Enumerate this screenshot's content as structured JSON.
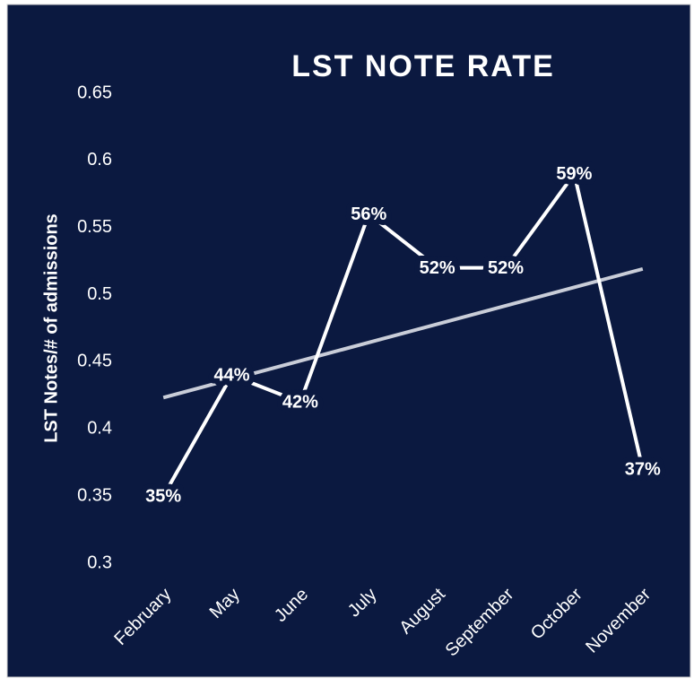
{
  "chart_data": {
    "type": "line",
    "title": "LST NOTE RATE",
    "y_label": "LST Notes/# of admissions",
    "categories": [
      "February",
      "May",
      "June",
      "July",
      "August",
      "September",
      "October",
      "November"
    ],
    "values": [
      0.35,
      0.44,
      0.42,
      0.56,
      0.52,
      0.52,
      0.59,
      0.37
    ],
    "value_labels": [
      "35%",
      "44%",
      "42%",
      "56%",
      "52%",
      "52%",
      "59%",
      "37%"
    ],
    "color": "#ffffff",
    "trendline": true,
    "trend_color": "#c9cdd8",
    "ylim": [
      0.3,
      0.65
    ],
    "yticks": [
      0.3,
      0.35,
      0.4,
      0.45,
      0.5,
      0.55,
      0.6,
      0.65
    ],
    "grid": false
  }
}
